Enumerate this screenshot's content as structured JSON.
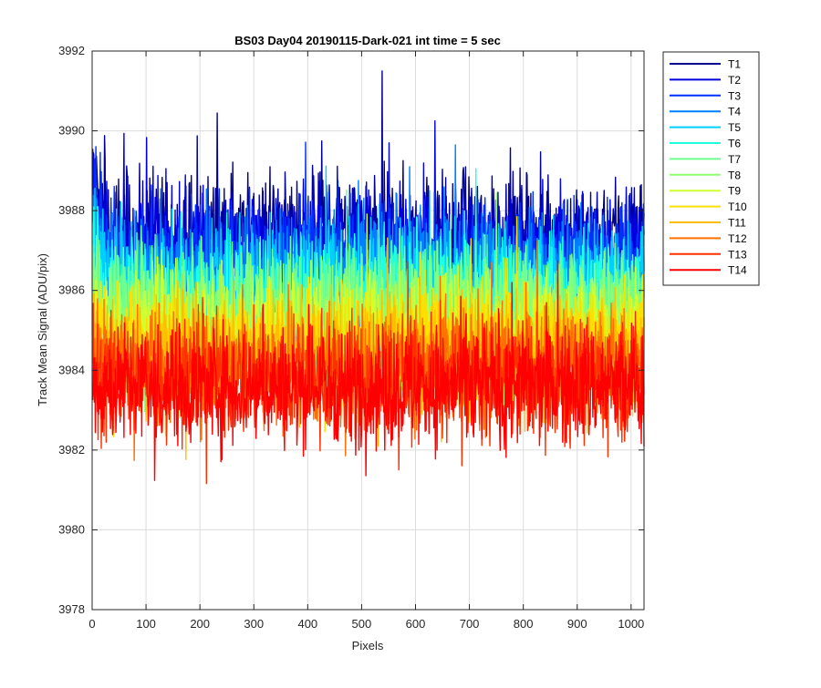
{
  "chart_data": {
    "type": "line",
    "title": "BS03 Day04 20190115-Dark-021 int time = 5 sec",
    "xlabel": "Pixels",
    "ylabel": "Track Mean Signal (ADU/pix)",
    "xlim": [
      0,
      1024
    ],
    "ylim": [
      3978,
      3992
    ],
    "xticks": [
      0,
      100,
      200,
      300,
      400,
      500,
      600,
      700,
      800,
      900,
      1000
    ],
    "yticks": [
      3978,
      3980,
      3982,
      3984,
      3986,
      3988,
      3990,
      3992
    ],
    "grid": true,
    "legend_position": "outside-top-right",
    "x_points": 1024,
    "series": [
      {
        "name": "T1",
        "color": "#00008F",
        "mean": 3987.4,
        "spread": 0.75
      },
      {
        "name": "T2",
        "color": "#0000DF",
        "mean": 3987.1,
        "spread": 0.75
      },
      {
        "name": "T3",
        "color": "#0030FF",
        "mean": 3986.8,
        "spread": 0.75
      },
      {
        "name": "T4",
        "color": "#0080FF",
        "mean": 3986.5,
        "spread": 0.75
      },
      {
        "name": "T5",
        "color": "#00CFFF",
        "mean": 3986.2,
        "spread": 0.75
      },
      {
        "name": "T6",
        "color": "#20FFDF",
        "mean": 3985.9,
        "spread": 0.75
      },
      {
        "name": "T7",
        "color": "#70FF8F",
        "mean": 3985.6,
        "spread": 0.75
      },
      {
        "name": "T8",
        "color": "#8FFF70",
        "mean": 3985.3,
        "spread": 0.75
      },
      {
        "name": "T9",
        "color": "#CFFF30",
        "mean": 3985.0,
        "spread": 0.75
      },
      {
        "name": "T10",
        "color": "#FFDF00",
        "mean": 3984.7,
        "spread": 0.75
      },
      {
        "name": "T11",
        "color": "#FFBF00",
        "mean": 3984.4,
        "spread": 0.75
      },
      {
        "name": "T12",
        "color": "#FF7000",
        "mean": 3984.1,
        "spread": 0.75
      },
      {
        "name": "T13",
        "color": "#FF3000",
        "mean": 3983.8,
        "spread": 0.75
      },
      {
        "name": "T14",
        "color": "#FF0000",
        "mean": 3983.6,
        "spread": 0.75
      }
    ]
  }
}
